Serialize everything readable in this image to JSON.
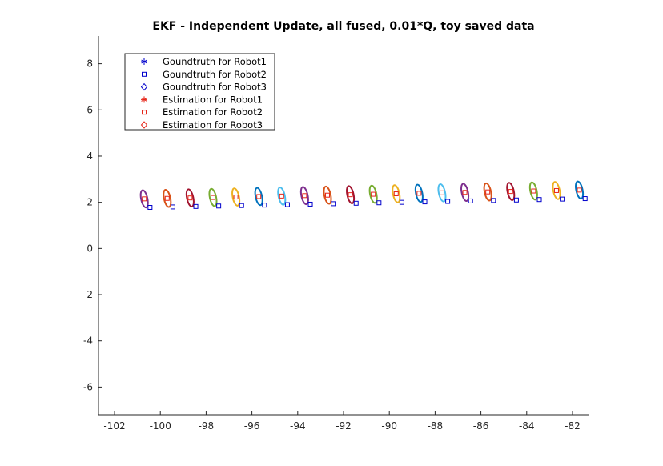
{
  "chart_data": {
    "type": "scatter",
    "title": "EKF - Independent Update, all fused, 0.01*Q, toy saved data",
    "xlabel": "",
    "ylabel": "",
    "xlim": [
      -102.7,
      -81.3
    ],
    "ylim": [
      -7.2,
      9.2
    ],
    "xticks": [
      -102,
      -100,
      -98,
      -96,
      -94,
      -92,
      -90,
      -88,
      -86,
      -84,
      -82
    ],
    "yticks": [
      -6,
      -4,
      -2,
      0,
      2,
      4,
      6,
      8
    ],
    "xtick_labels": [
      "-102",
      "-100",
      "-98",
      "-96",
      "-94",
      "-92",
      "-90",
      "-88",
      "-86",
      "-84",
      "-82"
    ],
    "ytick_labels": [
      "-6",
      "-4",
      "-2",
      "0",
      "2",
      "4",
      "6",
      "8"
    ],
    "grid": false,
    "legend_position": "top-left",
    "legend": [
      {
        "label": "Goundtruth for Robot1",
        "marker": "asterisk",
        "color": "#0000cc"
      },
      {
        "label": "Goundtruth for Robot2",
        "marker": "square",
        "color": "#0000cc"
      },
      {
        "label": "Goundtruth for Robot3",
        "marker": "diamond",
        "color": "#0000cc"
      },
      {
        "label": "Estimation for Robot1",
        "marker": "asterisk",
        "color": "#e6261a"
      },
      {
        "label": "Estimation for Robot2",
        "marker": "square",
        "color": "#e6261a"
      },
      {
        "label": "Estimation for Robot3",
        "marker": "diamond",
        "color": "#e6261a"
      }
    ],
    "series": [
      {
        "name": "Goundtruth for Robot2",
        "marker": "square",
        "color": "#0000cc",
        "x": [
          -100.45,
          -99.45,
          -98.45,
          -97.45,
          -96.45,
          -95.45,
          -94.45,
          -93.45,
          -92.45,
          -91.45,
          -90.45,
          -89.45,
          -88.45,
          -87.45,
          -86.45,
          -85.45,
          -84.45,
          -83.45,
          -82.45,
          -81.45
        ],
        "y": [
          1.78,
          1.8,
          1.82,
          1.84,
          1.86,
          1.88,
          1.9,
          1.92,
          1.94,
          1.96,
          1.98,
          2.0,
          2.02,
          2.04,
          2.06,
          2.08,
          2.1,
          2.12,
          2.14,
          2.16
        ]
      },
      {
        "name": "Estimation for Robot2",
        "marker": "square",
        "color": "#e6261a",
        "x": [
          -100.7,
          -99.7,
          -98.7,
          -97.7,
          -96.7,
          -95.7,
          -94.7,
          -93.7,
          -92.7,
          -91.7,
          -90.7,
          -89.7,
          -88.7,
          -87.7,
          -86.7,
          -85.7,
          -84.7,
          -83.7,
          -82.7,
          -81.7
        ],
        "y": [
          2.15,
          2.17,
          2.19,
          2.21,
          2.23,
          2.25,
          2.27,
          2.29,
          2.31,
          2.33,
          2.35,
          2.37,
          2.39,
          2.41,
          2.43,
          2.45,
          2.47,
          2.49,
          2.51,
          2.53
        ]
      }
    ],
    "covariance_ellipses": {
      "centers_x": [
        -100.7,
        -99.7,
        -98.7,
        -97.7,
        -96.7,
        -95.7,
        -94.7,
        -93.7,
        -92.7,
        -91.7,
        -90.7,
        -89.7,
        -88.7,
        -87.7,
        -86.7,
        -85.7,
        -84.7,
        -83.7,
        -82.7,
        -81.7
      ],
      "centers_y": [
        2.15,
        2.17,
        2.19,
        2.21,
        2.23,
        2.25,
        2.27,
        2.29,
        2.31,
        2.33,
        2.35,
        2.37,
        2.39,
        2.41,
        2.43,
        2.45,
        2.47,
        2.49,
        2.51,
        2.53
      ],
      "colors": [
        "#7e2f8e",
        "#d95319",
        "#a2142f",
        "#77ac30",
        "#edb120",
        "#0072bd",
        "#4dbeee",
        "#7e2f8e",
        "#d95319",
        "#a2142f",
        "#77ac30",
        "#edb120",
        "#0072bd",
        "#4dbeee",
        "#7e2f8e",
        "#d95319",
        "#a2142f",
        "#77ac30",
        "#edb120",
        "#0072bd"
      ]
    }
  }
}
